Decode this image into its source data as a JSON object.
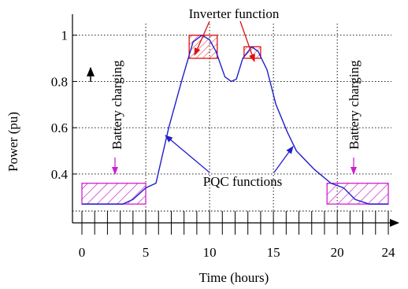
{
  "chart_data": {
    "type": "line",
    "title": "",
    "xlabel": "Time (hours)",
    "ylabel": "Power (pu)",
    "xlim": [
      0,
      24
    ],
    "ylim": [
      0.25,
      1.05
    ],
    "x_ticks": [
      0,
      5,
      10,
      15,
      20,
      24
    ],
    "x_tick_labels": [
      "0",
      "5",
      "10",
      "15",
      "20",
      "24"
    ],
    "y_ticks": [
      0.4,
      0.6,
      0.8,
      1.0
    ],
    "y_tick_labels": [
      "0.4",
      "0.6",
      "0.8",
      "1"
    ],
    "grid": "dotted",
    "series": [
      {
        "color": "#1f1fcc",
        "x": [
          0.0,
          3.2,
          4.0,
          5.0,
          5.8,
          6.8,
          7.8,
          8.7,
          9.4,
          10.0,
          10.5,
          11.2,
          11.7,
          12.1,
          12.6,
          13.3,
          13.8,
          14.5,
          15.2,
          16.1,
          16.8,
          18.2,
          19.5,
          20.5,
          21.4,
          22.5,
          24.0
        ],
        "y": [
          0.27,
          0.27,
          0.29,
          0.34,
          0.36,
          0.6,
          0.8,
          0.97,
          1.0,
          0.98,
          0.93,
          0.82,
          0.8,
          0.81,
          0.9,
          0.95,
          0.93,
          0.85,
          0.7,
          0.58,
          0.5,
          0.42,
          0.36,
          0.34,
          0.29,
          0.27,
          0.27
        ]
      }
    ],
    "shaded_regions": [
      {
        "kind": "battery",
        "x0": 0.0,
        "x1": 5.0,
        "y0": 0.27,
        "y1": 0.36,
        "color": "#cc22cc"
      },
      {
        "kind": "battery",
        "x0": 19.2,
        "x1": 24.0,
        "y0": 0.27,
        "y1": 0.36,
        "color": "#cc22cc"
      },
      {
        "kind": "inverter",
        "x0": 8.4,
        "x1": 10.6,
        "y0": 0.9,
        "y1": 1.0,
        "color": "#dd1111"
      },
      {
        "kind": "inverter",
        "x0": 12.7,
        "x1": 14.0,
        "y0": 0.9,
        "y1": 0.95,
        "color": "#dd1111"
      }
    ],
    "annotations": {
      "inverter": "Inverter function",
      "pqc": "PQC functions",
      "battery_left": "Battery charging",
      "battery_right": "Battery charging"
    }
  }
}
